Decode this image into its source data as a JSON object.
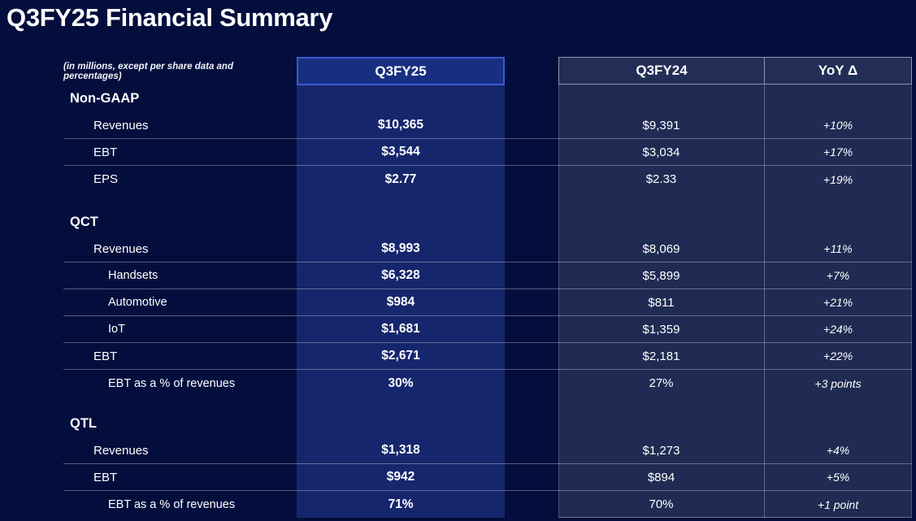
{
  "title": "Q3FY25 Financial Summary",
  "subtitle": "(in millions, except per share data and percentages)",
  "columns": {
    "current": "Q3FY25",
    "prior": "Q3FY24",
    "yoy": "YoY Δ"
  },
  "colors": {
    "background": "#030e3d",
    "current_column": "#16266c",
    "current_header_fill": "#172f80",
    "current_header_border": "#3a5ad1",
    "prior_block": "#1f2b52",
    "prior_header_fill": "#222e56",
    "divider": "rgba(255,255,255,0.33)",
    "text": "#ffffff"
  },
  "sections": [
    {
      "name": "Non-GAAP",
      "rows": [
        {
          "label": "Revenues",
          "indent": 1,
          "current": "$10,365",
          "prior": "$9,391",
          "yoy": "+10%",
          "divider": true
        },
        {
          "label": "EBT",
          "indent": 1,
          "current": "$3,544",
          "prior": "$3,034",
          "yoy": "+17%",
          "divider": true
        },
        {
          "label": "EPS",
          "indent": 1,
          "current": "$2.77",
          "prior": "$2.33",
          "yoy": "+19%",
          "divider": false
        }
      ]
    },
    {
      "name": "QCT",
      "rows": [
        {
          "label": "Revenues",
          "indent": 1,
          "current": "$8,993",
          "prior": "$8,069",
          "yoy": "+11%",
          "divider": true
        },
        {
          "label": "Handsets",
          "indent": 2,
          "current": "$6,328",
          "prior": "$5,899",
          "yoy": "+7%",
          "divider": true
        },
        {
          "label": "Automotive",
          "indent": 2,
          "current": "$984",
          "prior": "$811",
          "yoy": "+21%",
          "divider": true
        },
        {
          "label": "IoT",
          "indent": 2,
          "current": "$1,681",
          "prior": "$1,359",
          "yoy": "+24%",
          "divider": true
        },
        {
          "label": "EBT",
          "indent": 1,
          "current": "$2,671",
          "prior": "$2,181",
          "yoy": "+22%",
          "divider": true
        },
        {
          "label": "EBT as a % of revenues",
          "indent": 2,
          "current": "30%",
          "prior": "27%",
          "yoy": "+3 points",
          "divider": false
        }
      ]
    },
    {
      "name": "QTL",
      "rows": [
        {
          "label": "Revenues",
          "indent": 1,
          "current": "$1,318",
          "prior": "$1,273",
          "yoy": "+4%",
          "divider": true
        },
        {
          "label": "EBT",
          "indent": 1,
          "current": "$942",
          "prior": "$894",
          "yoy": "+5%",
          "divider": true
        },
        {
          "label": "EBT as a % of revenues",
          "indent": 2,
          "current": "71%",
          "prior": "70%",
          "yoy": "+1 point",
          "divider": false
        }
      ]
    }
  ]
}
